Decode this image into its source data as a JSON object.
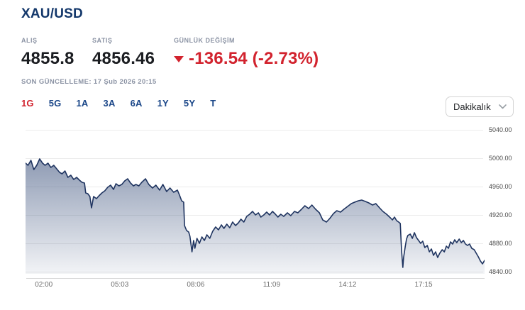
{
  "header": {
    "title": "XAU/USD",
    "bid_label": "ALIŞ",
    "bid_value": "4855.8",
    "ask_label": "SATIŞ",
    "ask_value": "4856.46",
    "change_label": "GÜNLÜK DEĞİŞİM",
    "change_value": "-136.54 (-2.73%)",
    "change_direction": "down",
    "last_update": "SON GÜNCELLEME: 17 Şub 2026 20:15"
  },
  "toolbar": {
    "range_tabs": [
      {
        "label": "1G",
        "active": true
      },
      {
        "label": "5G",
        "active": false
      },
      {
        "label": "1A",
        "active": false
      },
      {
        "label": "3A",
        "active": false
      },
      {
        "label": "6A",
        "active": false
      },
      {
        "label": "1Y",
        "active": false
      },
      {
        "label": "5Y",
        "active": false
      },
      {
        "label": "T",
        "active": false
      }
    ],
    "interval_value": "Dakikalık",
    "chevron_icon": "chevron-down"
  },
  "colors": {
    "navy": "#14386b",
    "tab_blue": "#1a4688",
    "red": "#d2232e",
    "muted_label": "#8b93a4",
    "line": "#1f3460",
    "fill_base": "40,64,111",
    "grid": "#ececec",
    "axis": "#d8d8d8"
  },
  "chart_data": {
    "type": "area",
    "title": "",
    "xlabel": "",
    "ylabel": "",
    "legend": "none",
    "grid": "horizontal-only",
    "y_axis": {
      "side": "right",
      "tick_labels": [
        "5040.00",
        "5000.00",
        "4960.00",
        "4920.00",
        "4880.00",
        "4840.00"
      ],
      "tick_values": [
        5040,
        5000,
        4960,
        4920,
        4880,
        4840
      ],
      "range": [
        4840,
        5040
      ]
    },
    "x_axis": {
      "tick_labels": [
        "02:00",
        "05:03",
        "08:06",
        "11:09",
        "14:12",
        "17:15"
      ],
      "tick_minutes": [
        120,
        303,
        486,
        669,
        852,
        1035
      ],
      "range_minutes": [
        76,
        1182
      ]
    },
    "series": [
      {
        "name": "XAU/USD",
        "points": [
          [
            76,
            4993
          ],
          [
            82,
            4990
          ],
          [
            89,
            4997
          ],
          [
            96,
            4984
          ],
          [
            103,
            4990
          ],
          [
            110,
            4999
          ],
          [
            117,
            4993
          ],
          [
            123,
            4990
          ],
          [
            130,
            4993
          ],
          [
            137,
            4987
          ],
          [
            144,
            4990
          ],
          [
            151,
            4985
          ],
          [
            158,
            4980
          ],
          [
            164,
            4978
          ],
          [
            171,
            4982
          ],
          [
            178,
            4973
          ],
          [
            185,
            4976
          ],
          [
            192,
            4970
          ],
          [
            199,
            4973
          ],
          [
            206,
            4969
          ],
          [
            212,
            4966
          ],
          [
            218,
            4965
          ],
          [
            221,
            4951
          ],
          [
            226,
            4950
          ],
          [
            231,
            4946
          ],
          [
            235,
            4930
          ],
          [
            240,
            4946
          ],
          [
            247,
            4943
          ],
          [
            253,
            4947
          ],
          [
            260,
            4951
          ],
          [
            267,
            4954
          ],
          [
            274,
            4959
          ],
          [
            281,
            4962
          ],
          [
            288,
            4956
          ],
          [
            294,
            4964
          ],
          [
            301,
            4961
          ],
          [
            308,
            4963
          ],
          [
            315,
            4968
          ],
          [
            322,
            4971
          ],
          [
            329,
            4965
          ],
          [
            336,
            4961
          ],
          [
            342,
            4963
          ],
          [
            349,
            4961
          ],
          [
            356,
            4966
          ],
          [
            365,
            4971
          ],
          [
            373,
            4963
          ],
          [
            382,
            4958
          ],
          [
            390,
            4962
          ],
          [
            399,
            4955
          ],
          [
            407,
            4963
          ],
          [
            416,
            4953
          ],
          [
            424,
            4958
          ],
          [
            433,
            4952
          ],
          [
            442,
            4955
          ],
          [
            447,
            4948
          ],
          [
            452,
            4940
          ],
          [
            457,
            4938
          ],
          [
            459,
            4905
          ],
          [
            464,
            4898
          ],
          [
            469,
            4896
          ],
          [
            472,
            4890
          ],
          [
            477,
            4868
          ],
          [
            481,
            4884
          ],
          [
            484,
            4873
          ],
          [
            489,
            4887
          ],
          [
            495,
            4880
          ],
          [
            501,
            4889
          ],
          [
            507,
            4884
          ],
          [
            513,
            4892
          ],
          [
            520,
            4887
          ],
          [
            527,
            4897
          ],
          [
            534,
            4903
          ],
          [
            541,
            4899
          ],
          [
            548,
            4906
          ],
          [
            554,
            4901
          ],
          [
            561,
            4907
          ],
          [
            568,
            4902
          ],
          [
            575,
            4910
          ],
          [
            582,
            4905
          ],
          [
            589,
            4909
          ],
          [
            595,
            4914
          ],
          [
            602,
            4910
          ],
          [
            609,
            4918
          ],
          [
            616,
            4921
          ],
          [
            623,
            4925
          ],
          [
            630,
            4920
          ],
          [
            637,
            4923
          ],
          [
            643,
            4917
          ],
          [
            650,
            4920
          ],
          [
            657,
            4924
          ],
          [
            664,
            4920
          ],
          [
            671,
            4925
          ],
          [
            678,
            4921
          ],
          [
            684,
            4917
          ],
          [
            691,
            4921
          ],
          [
            698,
            4918
          ],
          [
            707,
            4923
          ],
          [
            715,
            4919
          ],
          [
            724,
            4925
          ],
          [
            732,
            4923
          ],
          [
            741,
            4928
          ],
          [
            749,
            4933
          ],
          [
            758,
            4929
          ],
          [
            766,
            4934
          ],
          [
            775,
            4928
          ],
          [
            784,
            4923
          ],
          [
            792,
            4913
          ],
          [
            801,
            4910
          ],
          [
            809,
            4915
          ],
          [
            818,
            4922
          ],
          [
            826,
            4926
          ],
          [
            835,
            4924
          ],
          [
            843,
            4928
          ],
          [
            852,
            4932
          ],
          [
            861,
            4936
          ],
          [
            869,
            4938
          ],
          [
            878,
            4940
          ],
          [
            886,
            4941
          ],
          [
            895,
            4939
          ],
          [
            903,
            4937
          ],
          [
            912,
            4934
          ],
          [
            920,
            4936
          ],
          [
            929,
            4930
          ],
          [
            937,
            4925
          ],
          [
            946,
            4921
          ],
          [
            955,
            4916
          ],
          [
            960,
            4913
          ],
          [
            965,
            4917
          ],
          [
            970,
            4912
          ],
          [
            975,
            4910
          ],
          [
            979,
            4908
          ],
          [
            982,
            4870
          ],
          [
            985,
            4846
          ],
          [
            987,
            4860
          ],
          [
            991,
            4876
          ],
          [
            994,
            4886
          ],
          [
            997,
            4891
          ],
          [
            1003,
            4893
          ],
          [
            1008,
            4887
          ],
          [
            1013,
            4895
          ],
          [
            1018,
            4888
          ],
          [
            1023,
            4884
          ],
          [
            1028,
            4880
          ],
          [
            1033,
            4883
          ],
          [
            1038,
            4874
          ],
          [
            1044,
            4877
          ],
          [
            1049,
            4868
          ],
          [
            1054,
            4872
          ],
          [
            1059,
            4863
          ],
          [
            1064,
            4868
          ],
          [
            1069,
            4860
          ],
          [
            1074,
            4866
          ],
          [
            1080,
            4871
          ],
          [
            1085,
            4868
          ],
          [
            1090,
            4876
          ],
          [
            1095,
            4873
          ],
          [
            1100,
            4882
          ],
          [
            1105,
            4879
          ],
          [
            1110,
            4885
          ],
          [
            1115,
            4881
          ],
          [
            1121,
            4886
          ],
          [
            1126,
            4881
          ],
          [
            1131,
            4884
          ],
          [
            1136,
            4879
          ],
          [
            1141,
            4877
          ],
          [
            1146,
            4879
          ],
          [
            1151,
            4873
          ],
          [
            1157,
            4871
          ],
          [
            1162,
            4866
          ],
          [
            1167,
            4861
          ],
          [
            1172,
            4855
          ],
          [
            1177,
            4851
          ],
          [
            1182,
            4856
          ]
        ]
      }
    ]
  }
}
